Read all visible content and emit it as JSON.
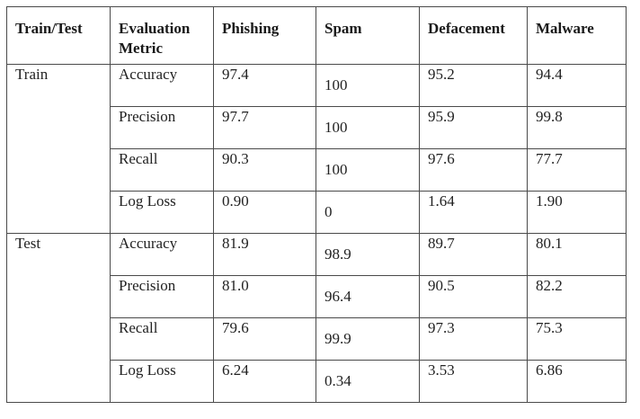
{
  "table": {
    "headers": [
      "Train/Test",
      "Evaluation Metric",
      "Phishing",
      "Spam",
      "Defacement",
      "Malware"
    ],
    "groups": [
      {
        "label": "Train",
        "rows": [
          {
            "metric": "Accuracy",
            "values": [
              "97.4",
              "100",
              "95.2",
              "94.4"
            ]
          },
          {
            "metric": "Precision",
            "values": [
              "97.7",
              "100",
              "95.9",
              "99.8"
            ]
          },
          {
            "metric": "Recall",
            "values": [
              "90.3",
              "100",
              "97.6",
              "77.7"
            ]
          },
          {
            "metric": "Log Loss",
            "values": [
              "0.90",
              "0",
              "1.64",
              "1.90"
            ]
          }
        ]
      },
      {
        "label": "Test",
        "rows": [
          {
            "metric": "Accuracy",
            "values": [
              "81.9",
              "98.9",
              "89.7",
              "80.1"
            ]
          },
          {
            "metric": "Precision",
            "values": [
              "81.0",
              "96.4",
              "90.5",
              "82.2"
            ]
          },
          {
            "metric": "Recall",
            "values": [
              "79.6",
              "99.9",
              "97.3",
              "75.3"
            ]
          },
          {
            "metric": "Log Loss",
            "values": [
              "6.24",
              "0.34",
              "3.53",
              "6.86"
            ]
          }
        ]
      }
    ]
  }
}
